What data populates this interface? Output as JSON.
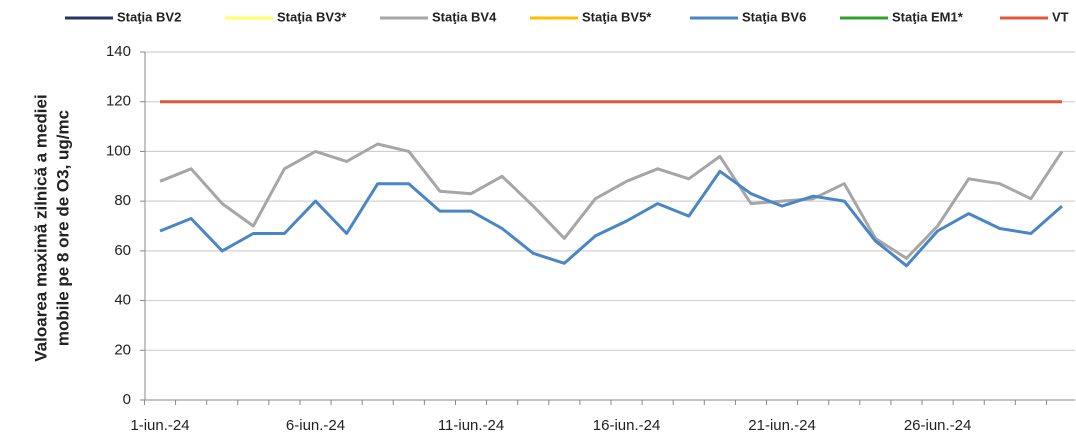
{
  "chart_data": {
    "type": "line",
    "ylabel_lines": [
      "Valoarea maximă zilnică a mediei",
      "mobile pe 8 ore de O3, ug/mc"
    ],
    "categories": [
      "1-iun.-24",
      null,
      null,
      null,
      null,
      "6-iun.-24",
      null,
      null,
      null,
      null,
      "11-iun.-24",
      null,
      null,
      null,
      null,
      "16-iun.-24",
      null,
      null,
      null,
      null,
      "21-iun.-24",
      null,
      null,
      null,
      null,
      "26-iun.-24",
      null,
      null,
      null,
      null
    ],
    "series": [
      {
        "name": "Staţia BV2",
        "color": "#1f3864",
        "values": [
          null,
          null,
          null,
          null,
          null,
          null,
          null,
          null,
          null,
          null,
          null,
          null,
          null,
          null,
          null,
          null,
          null,
          null,
          null,
          null,
          null,
          null,
          null,
          null,
          null,
          null,
          null,
          null,
          null,
          null
        ]
      },
      {
        "name": "Staţia BV3*",
        "color": "#ffff66",
        "values": [
          null,
          null,
          null,
          null,
          null,
          null,
          null,
          null,
          null,
          null,
          null,
          null,
          null,
          null,
          null,
          null,
          null,
          null,
          null,
          null,
          null,
          null,
          null,
          null,
          null,
          null,
          null,
          null,
          null,
          null
        ]
      },
      {
        "name": "Staţia BV4",
        "color": "#a6a6a6",
        "values": [
          88,
          93,
          79,
          70,
          93,
          100,
          96,
          103,
          100,
          84,
          83,
          90,
          78,
          65,
          81,
          88,
          93,
          89,
          98,
          79,
          80,
          81,
          87,
          65,
          57,
          70,
          89,
          87,
          81,
          100
        ]
      },
      {
        "name": "Staţia BV5*",
        "color": "#ffc000",
        "values": [
          null,
          null,
          null,
          null,
          null,
          null,
          null,
          null,
          null,
          null,
          null,
          null,
          null,
          null,
          null,
          null,
          null,
          null,
          null,
          null,
          null,
          null,
          null,
          null,
          null,
          null,
          null,
          null,
          null,
          null
        ]
      },
      {
        "name": "Staţia BV6",
        "color": "#4a86c5",
        "values": [
          68,
          73,
          60,
          67,
          67,
          80,
          67,
          87,
          87,
          76,
          76,
          69,
          59,
          55,
          66,
          72,
          79,
          74,
          92,
          83,
          78,
          82,
          80,
          64,
          54,
          68,
          75,
          69,
          67,
          78
        ]
      },
      {
        "name": "Staţia EM1*",
        "color": "#33a02c",
        "values": [
          null,
          null,
          null,
          null,
          null,
          null,
          null,
          null,
          null,
          null,
          null,
          null,
          null,
          null,
          null,
          null,
          null,
          null,
          null,
          null,
          null,
          null,
          null,
          null,
          null,
          null,
          null,
          null,
          null,
          null
        ]
      },
      {
        "name": "VT",
        "color": "#e0583a",
        "values": [
          120,
          120,
          120,
          120,
          120,
          120,
          120,
          120,
          120,
          120,
          120,
          120,
          120,
          120,
          120,
          120,
          120,
          120,
          120,
          120,
          120,
          120,
          120,
          120,
          120,
          120,
          120,
          120,
          120,
          120
        ]
      }
    ],
    "ylim": [
      0,
      140
    ],
    "yticks": [
      0,
      20,
      40,
      60,
      80,
      100,
      120,
      140
    ],
    "grid": true,
    "legend": "top"
  }
}
